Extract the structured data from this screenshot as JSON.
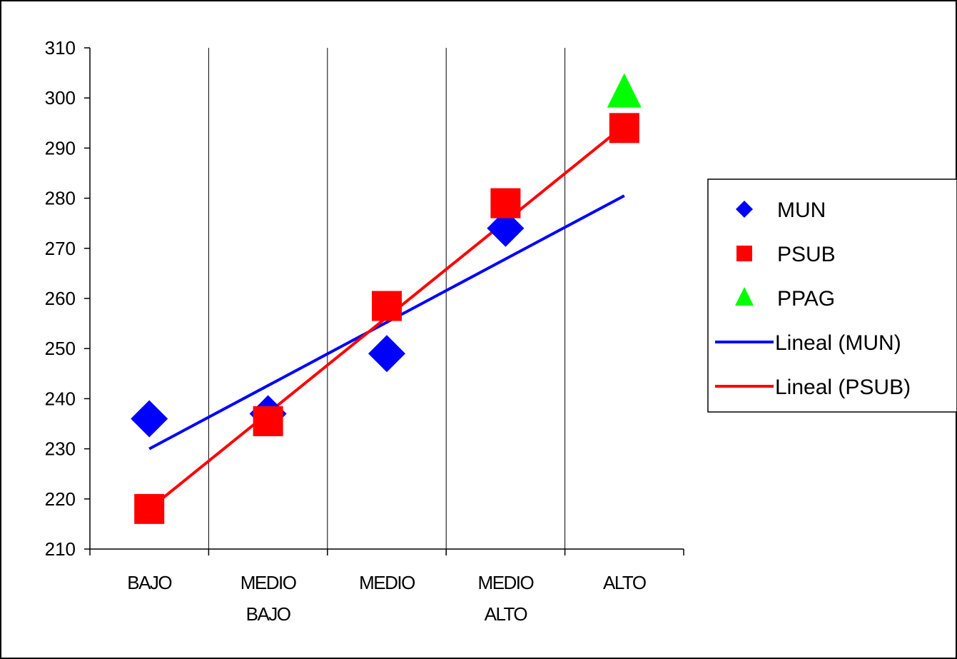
{
  "chart_data": {
    "type": "scatter",
    "title": "",
    "xlabel": "",
    "ylabel": "",
    "categories": [
      [
        "BAJO"
      ],
      [
        "MEDIO",
        "BAJO"
      ],
      [
        "MEDIO"
      ],
      [
        "MEDIO",
        "ALTO"
      ],
      [
        "ALTO"
      ]
    ],
    "ylim": [
      210,
      310
    ],
    "yticks": [
      210,
      220,
      230,
      240,
      250,
      260,
      270,
      280,
      290,
      300,
      310
    ],
    "grid": "vertical category separators",
    "legend_position": "right",
    "series": [
      {
        "name": "MUN",
        "marker": "diamond",
        "color": "#0000ff",
        "values": [
          236,
          237,
          249,
          274,
          null
        ]
      },
      {
        "name": "PSUB",
        "marker": "square",
        "color": "#ff0000",
        "values": [
          218,
          235.5,
          258.5,
          279,
          294
        ]
      },
      {
        "name": "PPAG",
        "marker": "triangle",
        "color": "#00ff00",
        "values": [
          null,
          null,
          null,
          null,
          301
        ]
      }
    ],
    "trendlines": [
      {
        "name": "Lineal (MUN)",
        "color": "#0000ff",
        "start": 230,
        "end": 280.5
      },
      {
        "name": "Lineal (PSUB)",
        "color": "#ff0000",
        "start": 218,
        "end": 294.5
      }
    ]
  }
}
